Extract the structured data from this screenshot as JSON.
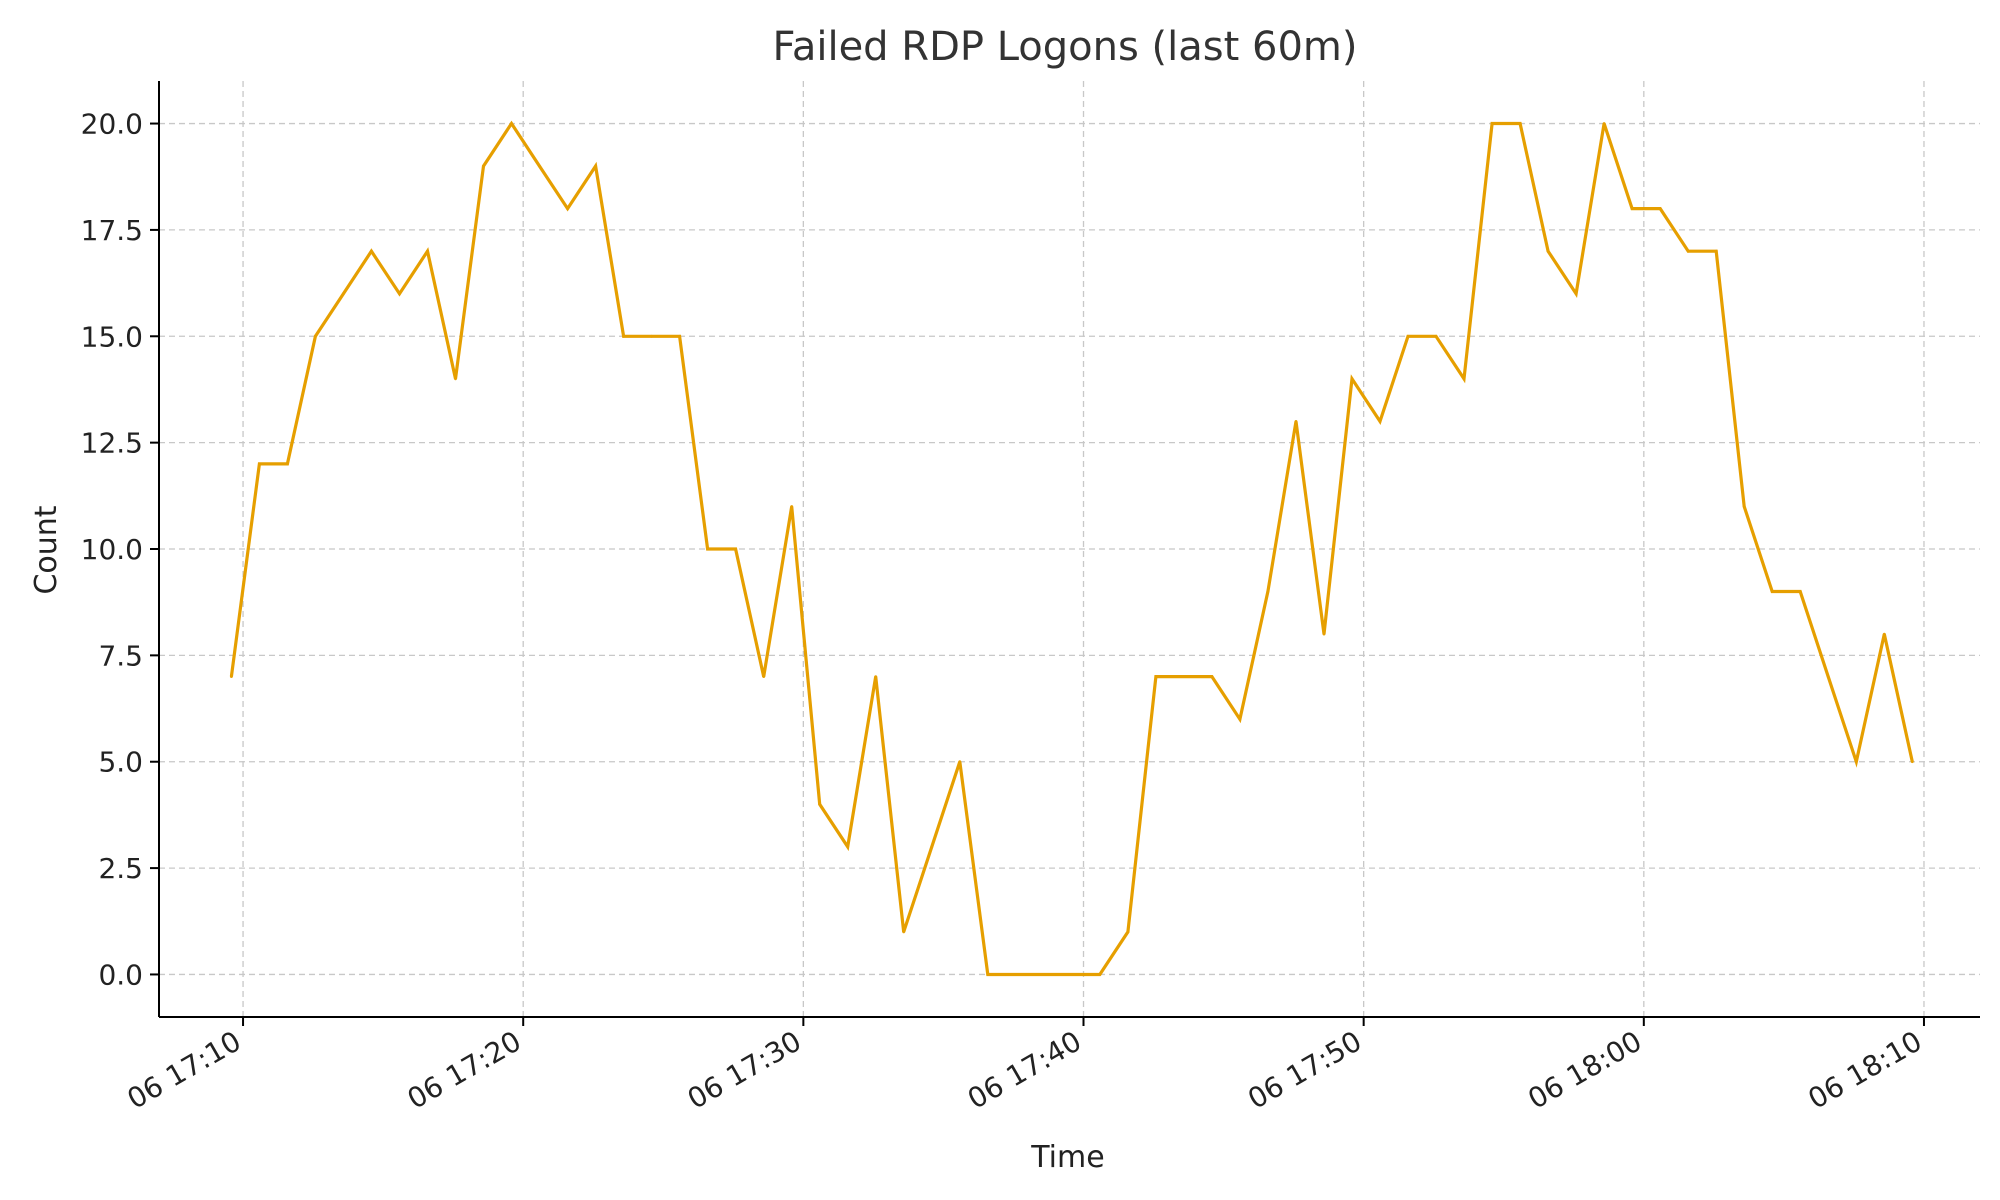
{
  "chart_data": {
    "type": "line",
    "title": "Failed RDP Logons (last 60m)",
    "xlabel": "Time",
    "ylabel": "Count",
    "x_ticks": [
      "06 17:10",
      "06 17:20",
      "06 17:30",
      "06 17:40",
      "06 17:50",
      "06 18:00",
      "06 18:10"
    ],
    "y_ticks": [
      "0.0",
      "2.5",
      "5.0",
      "7.5",
      "10.0",
      "12.5",
      "15.0",
      "17.5",
      "20.0"
    ],
    "ylim": [
      -1,
      21
    ],
    "xlim": [
      "17:07",
      "18:12"
    ],
    "grid": true,
    "series": [
      {
        "color": "#E69F00",
        "x": [
          "17:09:35",
          "17:10:35",
          "17:11:35",
          "17:12:35",
          "17:13:35",
          "17:14:35",
          "17:15:35",
          "17:16:35",
          "17:17:35",
          "17:18:35",
          "17:19:35",
          "17:20:35",
          "17:21:35",
          "17:22:35",
          "17:23:35",
          "17:24:35",
          "17:25:35",
          "17:26:35",
          "17:27:35",
          "17:28:35",
          "17:29:35",
          "17:30:35",
          "17:31:35",
          "17:32:35",
          "17:33:35",
          "17:34:35",
          "17:35:35",
          "17:36:35",
          "17:37:35",
          "17:38:35",
          "17:39:35",
          "17:40:35",
          "17:41:35",
          "17:42:35",
          "17:43:35",
          "17:44:35",
          "17:45:35",
          "17:46:35",
          "17:47:35",
          "17:48:35",
          "17:49:35",
          "17:50:35",
          "17:51:35",
          "17:52:35",
          "17:53:35",
          "17:54:35",
          "17:55:35",
          "17:56:35",
          "17:57:35",
          "17:58:35",
          "17:59:35",
          "18:00:35",
          "18:01:35",
          "18:02:35",
          "18:03:35",
          "18:04:35",
          "18:05:35",
          "18:06:35",
          "18:07:35",
          "18:08:35",
          "18:09:35"
        ],
        "values": [
          7,
          12,
          12,
          15,
          16,
          17,
          16,
          17,
          14,
          19,
          20,
          19,
          18,
          19,
          15,
          15,
          15,
          10,
          10,
          7,
          11,
          4,
          3,
          7,
          1,
          3,
          5,
          0,
          0,
          0,
          0,
          0,
          1,
          7,
          7,
          7,
          6,
          9,
          13,
          8,
          14,
          13,
          15,
          15,
          14,
          20,
          20,
          17,
          16,
          20,
          18,
          18,
          17,
          17,
          11,
          9,
          9,
          7,
          5,
          8,
          5
        ]
      }
    ]
  }
}
